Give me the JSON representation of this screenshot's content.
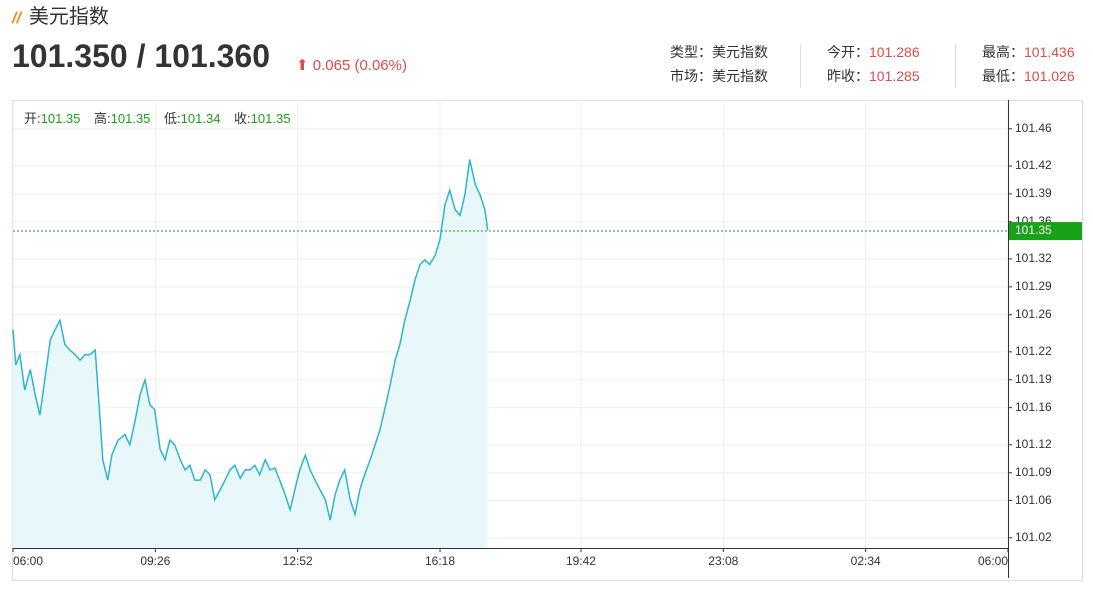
{
  "header": {
    "title": "美元指数",
    "quote": "101.350 / 101.360",
    "change": "0.065 (0.06%)",
    "info": [
      {
        "label": "类型：",
        "value": "美元指数"
      },
      {
        "label": "今开：",
        "value": "101.286"
      },
      {
        "label": "最高：",
        "value": "101.436"
      },
      {
        "label": "市场：",
        "value": "美元指数"
      },
      {
        "label": "昨收：",
        "value": "101.285"
      },
      {
        "label": "最低：",
        "value": "101.026"
      }
    ]
  },
  "ohlc": [
    {
      "label": "开:",
      "value": "101.35"
    },
    {
      "label": "高:",
      "value": "101.35"
    },
    {
      "label": "低:",
      "value": "101.34"
    },
    {
      "label": "收:",
      "value": "101.35"
    }
  ],
  "chart_data": {
    "type": "line",
    "color": "#2bb5d0",
    "fill": "#e8f8fa",
    "grid": true,
    "xlim": [
      0,
      1440
    ],
    "xticks": [
      {
        "value": 0,
        "label": "06:00"
      },
      {
        "value": 206,
        "label": "09:26"
      },
      {
        "value": 412,
        "label": "12:52"
      },
      {
        "value": 618,
        "label": "16:18"
      },
      {
        "value": 822,
        "label": "19:42"
      },
      {
        "value": 1028,
        "label": "23:08"
      },
      {
        "value": 1234,
        "label": "02:34"
      },
      {
        "value": 1440,
        "label": "06:00"
      }
    ],
    "ylim": [
      101.009,
      101.491
    ],
    "yticks": [
      101.02,
      101.06,
      101.09,
      101.12,
      101.16,
      101.19,
      101.22,
      101.26,
      101.29,
      101.32,
      101.36,
      101.39,
      101.42,
      101.46
    ],
    "current_price": 101.35,
    "current_color": "#1aa11a",
    "x": [
      0,
      4,
      10,
      17,
      25,
      32,
      39,
      46,
      54,
      61,
      68,
      75,
      82,
      90,
      97,
      104,
      111,
      119,
      126,
      130,
      137,
      143,
      152,
      162,
      169,
      177,
      184,
      191,
      198,
      205,
      213,
      220,
      227,
      234,
      242,
      249,
      256,
      263,
      271,
      278,
      285,
      292,
      300,
      307,
      314,
      321,
      329,
      336,
      343,
      350,
      357,
      365,
      372,
      379,
      386,
      394,
      401,
      408,
      415,
      423,
      430,
      437,
      444,
      452,
      459,
      466,
      473,
      480,
      488,
      495,
      502,
      509,
      517,
      524,
      531,
      538,
      546,
      553,
      560,
      567,
      575,
      582,
      589,
      596,
      603,
      611,
      618,
      625,
      632,
      640,
      647,
      654,
      661,
      669,
      676,
      683,
      687
    ],
    "values": [
      101.244,
      101.206,
      101.217,
      101.179,
      101.201,
      101.174,
      101.152,
      101.19,
      101.233,
      101.244,
      101.254,
      101.228,
      101.222,
      101.217,
      101.211,
      101.217,
      101.217,
      101.222,
      101.147,
      101.104,
      101.082,
      101.109,
      101.125,
      101.131,
      101.12,
      101.147,
      101.174,
      101.19,
      101.163,
      101.158,
      101.115,
      101.104,
      101.125,
      101.12,
      101.104,
      101.093,
      101.098,
      101.082,
      101.082,
      101.093,
      101.088,
      101.061,
      101.072,
      101.082,
      101.093,
      101.098,
      101.084,
      101.093,
      101.093,
      101.098,
      101.088,
      101.104,
      101.093,
      101.095,
      101.082,
      101.066,
      101.05,
      101.072,
      101.093,
      101.109,
      101.093,
      101.082,
      101.072,
      101.061,
      101.039,
      101.066,
      101.082,
      101.093,
      101.061,
      101.045,
      101.072,
      101.088,
      101.104,
      101.12,
      101.136,
      101.158,
      101.185,
      101.211,
      101.228,
      101.254,
      101.276,
      101.298,
      101.314,
      101.319,
      101.314,
      101.324,
      101.341,
      101.378,
      101.394,
      101.373,
      101.367,
      101.389,
      101.427,
      101.4,
      101.389,
      101.373,
      101.351
    ]
  }
}
